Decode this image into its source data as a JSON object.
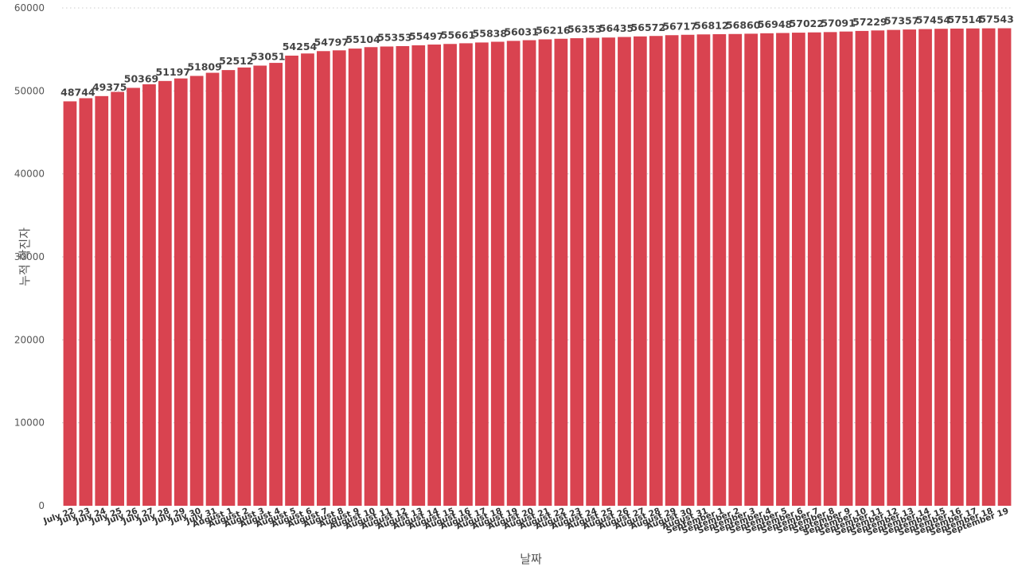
{
  "chart_data": {
    "type": "bar",
    "title": "",
    "xlabel": "날짜",
    "ylabel": "누적 확진자",
    "ylim": [
      0,
      60000
    ],
    "yticks": [
      0,
      10000,
      20000,
      30000,
      40000,
      50000,
      60000
    ],
    "grid": "horizontal-dotted",
    "legend": "none",
    "bar_color": "#d94350",
    "categories": [
      "July 22",
      "July 23",
      "July 24",
      "July 25",
      "July 26",
      "July 27",
      "July 28",
      "July 29",
      "July 30",
      "July 31",
      "August 1",
      "August 2",
      "August 3",
      "August 4",
      "August 5",
      "August 6",
      "August 7",
      "August 8",
      "August 9",
      "August 10",
      "August 11",
      "August 12",
      "August 13",
      "August 14",
      "August 15",
      "August 16",
      "August 17",
      "August 18",
      "August 19",
      "August 20",
      "August 21",
      "August 22",
      "August 23",
      "August 24",
      "August 25",
      "August 26",
      "August 27",
      "August 28",
      "August 29",
      "August 30",
      "August 31",
      "September 1",
      "September 2",
      "September 3",
      "September 4",
      "September 5",
      "September 6",
      "September 7",
      "September 8",
      "September 9",
      "September 10",
      "September 11",
      "September 12",
      "September 13",
      "September 14",
      "September 15",
      "September 16",
      "September 17",
      "September 18",
      "September 19"
    ],
    "values": [
      48744,
      49122,
      49375,
      49884,
      50369,
      50799,
      51197,
      51504,
      51809,
      52186,
      52512,
      52824,
      53051,
      53380,
      54254,
      54513,
      54797,
      54890,
      55104,
      55278,
      55353,
      55401,
      55497,
      55589,
      55661,
      55744,
      55838,
      55927,
      56031,
      56114,
      56216,
      56287,
      56353,
      56402,
      56435,
      56501,
      56572,
      56623,
      56717,
      56766,
      56812,
      56838,
      56860,
      56896,
      56948,
      56983,
      57022,
      57055,
      57091,
      57157,
      57229,
      57289,
      57357,
      57404,
      57454,
      57489,
      57514,
      57531,
      57543,
      57553
    ],
    "data_labels": [
      {
        "index": 0,
        "text": "48744"
      },
      {
        "index": 2,
        "text": "49375"
      },
      {
        "index": 4,
        "text": "50369"
      },
      {
        "index": 6,
        "text": "51197"
      },
      {
        "index": 8,
        "text": "51809"
      },
      {
        "index": 10,
        "text": "52512"
      },
      {
        "index": 12,
        "text": "53051"
      },
      {
        "index": 14,
        "text": "54254"
      },
      {
        "index": 16,
        "text": "54797"
      },
      {
        "index": 18,
        "text": "55104"
      },
      {
        "index": 20,
        "text": "55353"
      },
      {
        "index": 22,
        "text": "55497"
      },
      {
        "index": 24,
        "text": "55661"
      },
      {
        "index": 26,
        "text": "55838"
      },
      {
        "index": 28,
        "text": "56031"
      },
      {
        "index": 30,
        "text": "56216"
      },
      {
        "index": 32,
        "text": "56353"
      },
      {
        "index": 34,
        "text": "56435"
      },
      {
        "index": 36,
        "text": "56572"
      },
      {
        "index": 38,
        "text": "56717"
      },
      {
        "index": 40,
        "text": "56812"
      },
      {
        "index": 42,
        "text": "56860"
      },
      {
        "index": 44,
        "text": "56948"
      },
      {
        "index": 46,
        "text": "57022"
      },
      {
        "index": 48,
        "text": "57091"
      },
      {
        "index": 50,
        "text": "57229"
      },
      {
        "index": 52,
        "text": "57357"
      },
      {
        "index": 54,
        "text": "57454"
      },
      {
        "index": 56,
        "text": "57514"
      },
      {
        "index": 58,
        "text": "57543"
      }
    ]
  }
}
